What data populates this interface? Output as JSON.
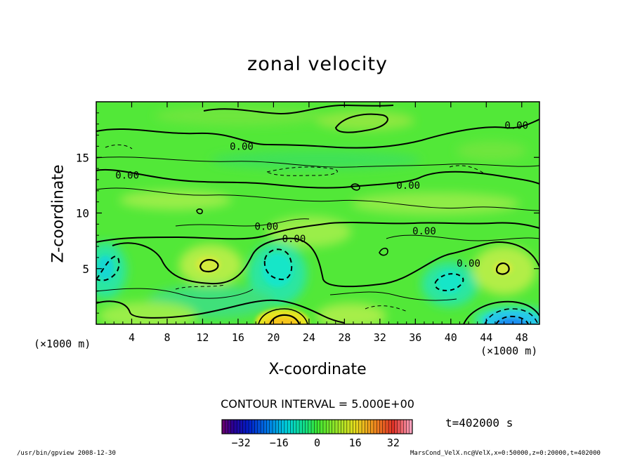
{
  "chart_data": {
    "type": "heatmap",
    "title": "zonal velocity",
    "xlabel": "X-coordinate",
    "ylabel": "Z-coordinate",
    "x_unit_label": "(×1000 m)",
    "xlim": [
      0,
      50
    ],
    "ylim": [
      0,
      20
    ],
    "x_ticks": [
      4,
      8,
      12,
      16,
      20,
      24,
      28,
      32,
      36,
      40,
      44,
      48
    ],
    "y_ticks": [
      5,
      10,
      15
    ],
    "contour_label": "0.00",
    "contour_labels": [
      {
        "x": 16.4,
        "z": 16.0
      },
      {
        "x": 3.5,
        "z": 13.4
      },
      {
        "x": 47.4,
        "z": 17.9
      },
      {
        "x": 35.2,
        "z": 12.5
      },
      {
        "x": 19.2,
        "z": 8.8
      },
      {
        "x": 22.3,
        "z": 7.7
      },
      {
        "x": 37.0,
        "z": 8.4
      },
      {
        "x": 42.0,
        "z": 5.5
      }
    ],
    "contour_interval": "CONTOUR INTERVAL = 5.000E+00",
    "colorbar": {
      "range": [
        -40,
        40
      ],
      "tick_labels": [
        "−32",
        "−16",
        "0",
        "16",
        "32"
      ],
      "tick_values": [
        -32,
        -16,
        0,
        16,
        32
      ],
      "colormap": "rainbow"
    },
    "features": [
      {
        "x": 21,
        "z": 0.3,
        "value": 22,
        "kind": "max"
      },
      {
        "x": 46,
        "z": 0.6,
        "value": -22,
        "kind": "min"
      },
      {
        "x": 13,
        "z": 5.6,
        "value": 10,
        "kind": "max"
      },
      {
        "x": 46,
        "z": 5.1,
        "value": 9,
        "kind": "max"
      },
      {
        "x": 20,
        "z": 5.8,
        "value": -11,
        "kind": "min"
      },
      {
        "x": 1.5,
        "z": 5.5,
        "value": -9,
        "kind": "min"
      },
      {
        "x": 39,
        "z": 4.0,
        "value": -8,
        "kind": "min"
      }
    ]
  },
  "annotations": {
    "time": "t=402000 s",
    "footer_left": "/usr/bin/gpview   2008-12-30",
    "footer_right": "MarsCond_VelX.nc@VelX,x=0:50000,z=0:20000,t=402000"
  },
  "colors": {
    "field_base": "#52e838",
    "field_light": "#96ec46",
    "field_cyan": "#19e6c8",
    "field_yellow": "#f0e614",
    "field_blue": "#1e6ef0",
    "contour": "#000000"
  }
}
